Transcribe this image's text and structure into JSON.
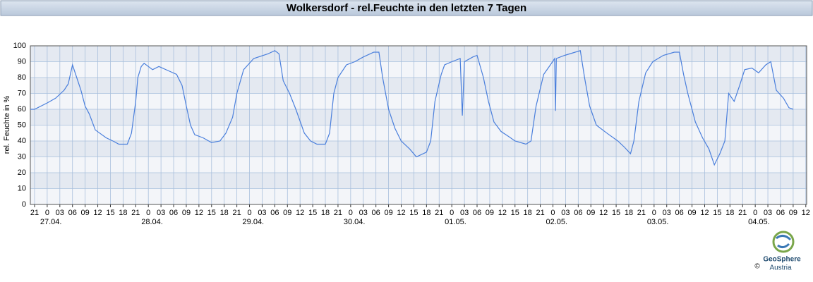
{
  "chart_data": {
    "type": "line",
    "title": "Wolkersdorf - rel.Feuchte in den letzten 7 Tagen",
    "ylabel": "rel. Feuchte in %",
    "color": "#4a7fdc",
    "grid": true,
    "x": [
      -1,
      0,
      3,
      5,
      7,
      8,
      9,
      10,
      11,
      12,
      13,
      14.4,
      17,
      18.6,
      20,
      22,
      23,
      24,
      24.5,
      25.3,
      26,
      28,
      29.5,
      32,
      33.7,
      35,
      36,
      37,
      38,
      40,
      42,
      44,
      45.4,
      47,
      48,
      49.6,
      52,
      55.4,
      57,
      58,
      59,
      60.5,
      62,
      64,
      65.5,
      67,
      69,
      70,
      71,
      72,
      74,
      76,
      78,
      80.5,
      81.7,
      82.6,
      84,
      85.5,
      87,
      89,
      90.6,
      93,
      94,
      95,
      96.5,
      97.3,
      99,
      101,
      101.5,
      102,
      104,
      105,
      106.5,
      107.7,
      109,
      110.7,
      112.4,
      114,
      116.6,
      117.8,
      119,
      120.8,
      122.4,
      123.4,
      123.6,
      123.8,
      125.8,
      128.3,
      129.5,
      130.5,
      131.7,
      133.3,
      135.8,
      138.4,
      140,
      141.4,
      142.2,
      143.4,
      145,
      146.7,
      149.2,
      151.8,
      153,
      154,
      155,
      156.8,
      158.5,
      160,
      161.3,
      162.6,
      163.8,
      164.7,
      166,
      167.3,
      168.5,
      170.2,
      171.8,
      173.5,
      174.7,
      176,
      177.7,
      179,
      180
    ],
    "values": [
      60,
      60,
      64,
      67,
      72,
      76,
      88,
      80,
      72,
      62,
      57,
      47,
      42,
      40,
      38,
      38,
      45,
      65,
      80,
      87,
      89,
      85,
      87,
      84,
      82,
      75,
      62,
      50,
      44,
      42,
      39,
      40,
      45,
      55,
      70,
      85,
      92,
      95,
      97,
      95,
      78,
      70,
      60,
      45,
      40,
      38,
      38,
      45,
      70,
      80,
      88,
      90,
      93,
      96,
      96,
      80,
      60,
      48,
      40,
      35,
      30,
      33,
      40,
      65,
      82,
      88,
      90,
      92,
      56,
      90,
      93,
      94,
      80,
      65,
      52,
      46,
      43,
      40,
      38,
      40,
      62,
      82,
      88,
      92,
      59,
      92,
      94,
      96,
      97,
      80,
      62,
      50,
      45,
      40,
      36,
      32,
      40,
      65,
      83,
      90,
      94,
      96,
      96,
      82,
      70,
      52,
      42,
      35,
      25,
      32,
      40,
      70,
      65,
      75,
      85,
      86,
      83,
      88,
      90,
      72,
      67,
      61,
      60
    ],
    "xlim": [
      -1,
      183.2
    ],
    "xticks": [
      {
        "value": 0,
        "label": "21"
      },
      {
        "value": 3,
        "label": "0"
      },
      {
        "value": 6,
        "label": "03"
      },
      {
        "value": 9,
        "label": "06"
      },
      {
        "value": 12,
        "label": "09"
      },
      {
        "value": 15,
        "label": "12"
      },
      {
        "value": 18,
        "label": "15"
      },
      {
        "value": 21,
        "label": "18"
      },
      {
        "value": 24,
        "label": "21"
      },
      {
        "value": 27,
        "label": "0"
      },
      {
        "value": 30,
        "label": "03"
      },
      {
        "value": 33,
        "label": "06"
      },
      {
        "value": 36,
        "label": "09"
      },
      {
        "value": 39,
        "label": "12"
      },
      {
        "value": 42,
        "label": "15"
      },
      {
        "value": 45,
        "label": "18"
      },
      {
        "value": 48,
        "label": "21"
      },
      {
        "value": 51,
        "label": "0"
      },
      {
        "value": 54,
        "label": "03"
      },
      {
        "value": 57,
        "label": "06"
      },
      {
        "value": 60,
        "label": "09"
      },
      {
        "value": 63,
        "label": "12"
      },
      {
        "value": 66,
        "label": "15"
      },
      {
        "value": 69,
        "label": "18"
      },
      {
        "value": 72,
        "label": "21"
      },
      {
        "value": 75,
        "label": "0"
      },
      {
        "value": 78,
        "label": "03"
      },
      {
        "value": 81,
        "label": "06"
      },
      {
        "value": 84,
        "label": "09"
      },
      {
        "value": 87,
        "label": "12"
      },
      {
        "value": 90,
        "label": "15"
      },
      {
        "value": 93,
        "label": "18"
      },
      {
        "value": 96,
        "label": "21"
      },
      {
        "value": 99,
        "label": "0"
      },
      {
        "value": 102,
        "label": "03"
      },
      {
        "value": 105,
        "label": "06"
      },
      {
        "value": 108,
        "label": "09"
      },
      {
        "value": 111,
        "label": "12"
      },
      {
        "value": 114,
        "label": "15"
      },
      {
        "value": 117,
        "label": "18"
      },
      {
        "value": 120,
        "label": "21"
      },
      {
        "value": 123,
        "label": "0"
      },
      {
        "value": 126,
        "label": "03"
      },
      {
        "value": 129,
        "label": "06"
      },
      {
        "value": 132,
        "label": "09"
      },
      {
        "value": 135,
        "label": "12"
      },
      {
        "value": 138,
        "label": "15"
      },
      {
        "value": 141,
        "label": "18"
      },
      {
        "value": 144,
        "label": "21"
      },
      {
        "value": 147,
        "label": "0"
      },
      {
        "value": 150,
        "label": "03"
      },
      {
        "value": 153,
        "label": "06"
      },
      {
        "value": 156,
        "label": "09"
      },
      {
        "value": 159,
        "label": "12"
      },
      {
        "value": 162,
        "label": "15"
      },
      {
        "value": 165,
        "label": "18"
      },
      {
        "value": 168,
        "label": "21"
      },
      {
        "value": 171,
        "label": "0"
      },
      {
        "value": 174,
        "label": "03"
      },
      {
        "value": 177,
        "label": "06"
      },
      {
        "value": 180,
        "label": "09"
      },
      {
        "value": 183,
        "label": "12"
      }
    ],
    "date_labels": [
      {
        "value": 3,
        "label": "27.04."
      },
      {
        "value": 27,
        "label": "28.04."
      },
      {
        "value": 51,
        "label": "29.04."
      },
      {
        "value": 75,
        "label": "30.04."
      },
      {
        "value": 99,
        "label": "01.05."
      },
      {
        "value": 123,
        "label": "02.05."
      },
      {
        "value": 147,
        "label": "03.05."
      },
      {
        "value": 171,
        "label": "04.05."
      }
    ],
    "ylim": [
      0,
      100
    ],
    "yticks": [
      0,
      10,
      20,
      30,
      40,
      50,
      60,
      70,
      80,
      90,
      100
    ]
  },
  "logo": {
    "name": "GeoSphere",
    "sub": "Austria",
    "copyright": "©"
  }
}
